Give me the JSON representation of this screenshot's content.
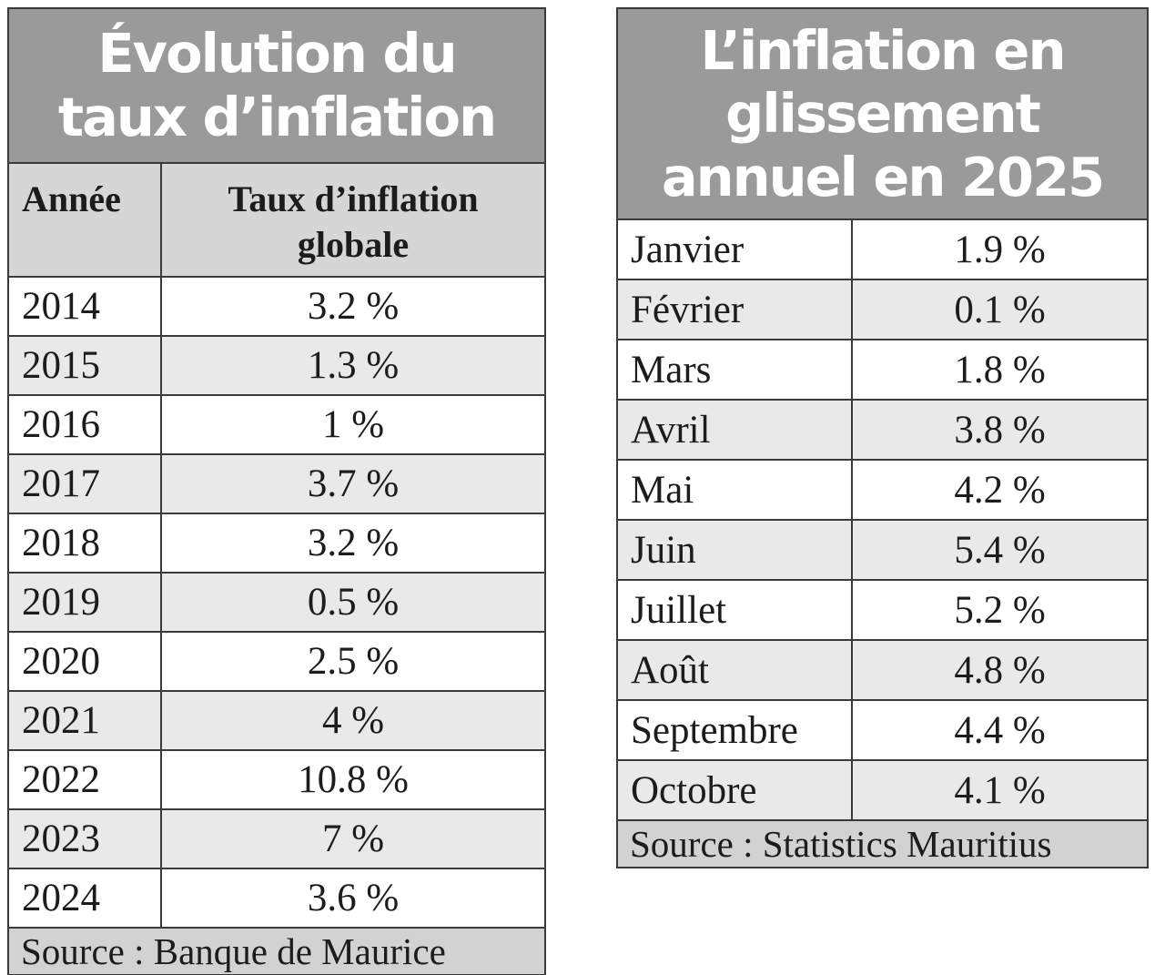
{
  "colors": {
    "title_bg": "#9a9a9a",
    "title_text": "#ffffff",
    "header_bg": "#d6d6d6",
    "stripe_bg": "#e9e9e9",
    "row_bg": "#ffffff",
    "footer_bg": "#d2d2d2",
    "border": "#3a3a3a",
    "text": "#1c1c1c",
    "page_bg": "#ffffff"
  },
  "left_table": {
    "title_lines": [
      "Évolution du",
      "taux d’inflation"
    ],
    "header": {
      "col1": "Année",
      "col2_lines": [
        "Taux d’inflation",
        "globale"
      ]
    }
  },
  "right_table": {
    "title_lines": [
      "L’inflation en",
      "glissement",
      "annuel en 2025"
    ]
  },
  "chart_data": [
    {
      "type": "table",
      "title": "Évolution du taux d’inflation",
      "columns": [
        "Année",
        "Taux d’inflation globale"
      ],
      "rows": [
        [
          "2014",
          "3.2 %"
        ],
        [
          "2015",
          "1.3 %"
        ],
        [
          "2016",
          "1 %"
        ],
        [
          "2017",
          "3.7 %"
        ],
        [
          "2018",
          "3.2 %"
        ],
        [
          "2019",
          "0.5 %"
        ],
        [
          "2020",
          "2.5 %"
        ],
        [
          "2021",
          "4 %"
        ],
        [
          "2022",
          "10.8 %"
        ],
        [
          "2023",
          "7 %"
        ],
        [
          "2024",
          "3.6 %"
        ]
      ],
      "source": "Source : Banque de Maurice"
    },
    {
      "type": "table",
      "title": "L’inflation en glissement annuel en 2025",
      "rows": [
        [
          "Janvier",
          "1.9 %"
        ],
        [
          "Février",
          "0.1 %"
        ],
        [
          "Mars",
          "1.8 %"
        ],
        [
          "Avril",
          "3.8 %"
        ],
        [
          "Mai",
          "4.2 %"
        ],
        [
          "Juin",
          "5.4 %"
        ],
        [
          "Juillet",
          "5.2 %"
        ],
        [
          "Août",
          "4.8 %"
        ],
        [
          "Septembre",
          "4.4 %"
        ],
        [
          "Octobre",
          "4.1 %"
        ]
      ],
      "source": "Source : Statistics Mauritius"
    }
  ]
}
